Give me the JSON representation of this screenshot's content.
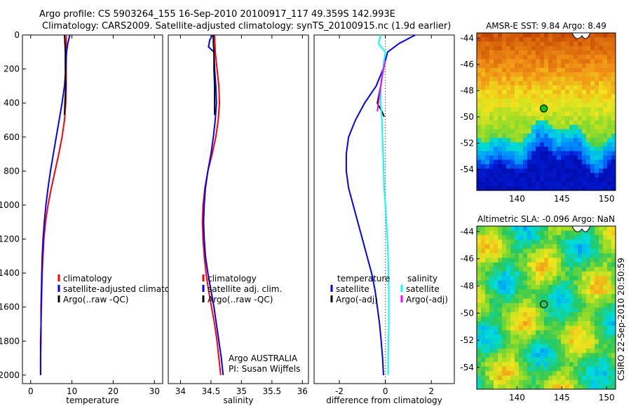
{
  "title_line1": "Argo profile: CS 5903264_155 16-Sep-2010 20100917_117 49.359S 142.993E",
  "title_line2": "Climatology: CARS2009. Satellite-adjusted climatology: synTS_20100915.nc (1.9d earlier)",
  "colors": {
    "climatology": "#ff0000",
    "satellite": "#0000ff",
    "argo": "#000000",
    "salinity_satellite": "#00ffff",
    "salinity_argo_adj": "#ff00ff"
  },
  "chart_data": [
    {
      "type": "line",
      "name": "temperature-panel",
      "xlabel": "temperature",
      "xlim": [
        -2,
        32
      ],
      "ylim": [
        0,
        2050
      ],
      "x_ticks": [
        0,
        10,
        20,
        30
      ],
      "y_ticks": [
        0,
        200,
        400,
        600,
        800,
        1000,
        1200,
        1400,
        1600,
        1800,
        2000
      ],
      "y_reversed": true,
      "legend": {
        "position": "lower-right",
        "entries": [
          "climatology",
          "satellite-adjusted climatology",
          "Argo(..raw -QC)"
        ]
      },
      "series": [
        {
          "name": "climatology",
          "color": "#ff0000",
          "depth": [
            0,
            100,
            200,
            300,
            400,
            500,
            600,
            700,
            800,
            900,
            1000,
            1100,
            1200,
            1300,
            1400,
            1500,
            1600,
            1700,
            1800,
            1900,
            2000
          ],
          "values": [
            8.6,
            8.6,
            8.6,
            8.6,
            8.5,
            8.2,
            7.6,
            6.8,
            5.9,
            5.0,
            4.2,
            3.6,
            3.2,
            3.0,
            2.8,
            2.7,
            2.6,
            2.5,
            2.5,
            2.4,
            2.4
          ]
        },
        {
          "name": "satellite-adjusted climatology",
          "color": "#0000ff",
          "depth": [
            0,
            50,
            100,
            200,
            300,
            400,
            500,
            600,
            700,
            800,
            900,
            1000,
            1100,
            1200,
            1300,
            1400,
            1500,
            1600,
            1700,
            1800,
            1900,
            2000
          ],
          "values": [
            9.5,
            9.0,
            8.7,
            8.5,
            8.2,
            7.6,
            6.9,
            6.2,
            5.5,
            4.8,
            4.2,
            3.7,
            3.3,
            3.0,
            2.8,
            2.7,
            2.6,
            2.5,
            2.5,
            2.4,
            2.4,
            2.4
          ]
        },
        {
          "name": "Argo(..raw -QC)",
          "color": "#000000",
          "depth": [
            0,
            50,
            100,
            200,
            300,
            400,
            470
          ],
          "values": [
            8.2,
            8.3,
            8.4,
            8.4,
            8.5,
            8.3,
            8.2
          ]
        }
      ]
    },
    {
      "type": "line",
      "name": "salinity-panel",
      "xlabel": "salinity",
      "xlim": [
        33.8,
        36.1
      ],
      "ylim": [
        0,
        2050
      ],
      "x_ticks": [
        34,
        34.5,
        35,
        35.5,
        36
      ],
      "y_reversed": true,
      "legend": {
        "position": "lower-right",
        "entries": [
          "climatology",
          "satellite adj. clim.",
          "Argo(..raw -QC)"
        ]
      },
      "annotation": [
        "Argo AUSTRALIA",
        "PI: Susan Wijffels"
      ],
      "series": [
        {
          "name": "climatology",
          "color": "#ff0000",
          "depth": [
            0,
            100,
            200,
            300,
            400,
            500,
            600,
            700,
            800,
            900,
            1000,
            1100,
            1200,
            1300,
            1400,
            1500,
            1600,
            1700,
            1800,
            1900,
            2000
          ],
          "values": [
            34.56,
            34.57,
            34.6,
            34.63,
            34.64,
            34.62,
            34.58,
            34.52,
            34.45,
            34.4,
            34.37,
            34.36,
            34.37,
            34.39,
            34.42,
            34.46,
            34.51,
            34.56,
            34.6,
            34.63,
            34.66
          ]
        },
        {
          "name": "satellite adj. clim.",
          "color": "#0000ff",
          "depth": [
            0,
            30,
            70,
            100,
            200,
            300,
            400,
            500,
            600,
            700,
            800,
            900,
            1000,
            1100,
            1200,
            1300,
            1400,
            1500,
            1600,
            1700,
            1800,
            1900,
            2000
          ],
          "values": [
            34.53,
            34.48,
            34.46,
            34.55,
            34.56,
            34.58,
            34.59,
            34.57,
            34.54,
            34.5,
            34.45,
            34.41,
            34.39,
            34.38,
            34.39,
            34.41,
            34.45,
            34.5,
            34.55,
            34.59,
            34.63,
            34.67,
            34.7
          ]
        },
        {
          "name": "Argo(..raw -QC)",
          "color": "#000000",
          "depth": [
            0,
            50,
            100,
            200,
            300,
            400,
            470
          ],
          "values": [
            34.54,
            34.54,
            34.55,
            34.55,
            34.56,
            34.56,
            34.56
          ]
        }
      ]
    },
    {
      "type": "line",
      "name": "difference-panel",
      "xlabel": "difference from climatology",
      "xlim": [
        -3.1,
        3.0
      ],
      "ylim": [
        0,
        2050
      ],
      "x_ticks": [
        -2,
        0,
        2
      ],
      "y_reversed": true,
      "legend": {
        "position": "lower-center",
        "columns": [
          [
            "temperature",
            "satellite",
            "Argo(-adj)"
          ],
          [
            "salinity",
            "satellite",
            "Argo(-adj)"
          ]
        ]
      },
      "series": [
        {
          "name": "temperature satellite",
          "color": "#0000ff",
          "depth": [
            0,
            50,
            100,
            200,
            300,
            400,
            500,
            600,
            700,
            800,
            900,
            1000,
            1100,
            1200,
            1300,
            1400,
            1500,
            1600,
            1700,
            1800,
            1900,
            2000
          ],
          "values": [
            1.3,
            0.6,
            0.1,
            -0.1,
            -0.4,
            -0.9,
            -1.3,
            -1.6,
            -1.7,
            -1.7,
            -1.6,
            -1.4,
            -1.2,
            -1.0,
            -0.8,
            -0.6,
            -0.45,
            -0.35,
            -0.25,
            -0.18,
            -0.12,
            -0.08
          ]
        },
        {
          "name": "temperature Argo(-adj)",
          "color": "#000000",
          "depth": [
            150,
            200,
            300,
            400,
            450,
            480
          ],
          "values": [
            -0.05,
            -0.1,
            -0.2,
            -0.35,
            -0.15,
            -0.05
          ]
        },
        {
          "name": "salinity satellite",
          "color": "#00ffff",
          "depth": [
            0,
            50,
            100,
            200,
            300,
            400,
            500,
            700,
            900,
            1100,
            1300,
            1500,
            1700,
            1900,
            2000
          ],
          "values": [
            -0.2,
            -0.3,
            0.0,
            -0.1,
            -0.2,
            -0.2,
            -0.15,
            -0.1,
            -0.05,
            0.05,
            0.12,
            0.15,
            0.15,
            0.12,
            0.12
          ]
        },
        {
          "name": "salinity Argo(-adj)",
          "color": "#ff00ff",
          "depth": [
            150,
            250,
            350,
            450
          ],
          "values": [
            0.0,
            -0.15,
            -0.25,
            -0.35
          ]
        }
      ]
    },
    {
      "type": "heatmap",
      "name": "sst-map",
      "title": "AMSR-E SST: 9.84 Argo: 8.49",
      "xlim": [
        135.5,
        151
      ],
      "ylim": [
        -55.6,
        -43.6
      ],
      "x_ticks": [
        140,
        145,
        150
      ],
      "y_ticks": [
        -44,
        -46,
        -48,
        -50,
        -52,
        -54
      ],
      "marker": {
        "lon": 142.993,
        "lat": -49.359
      }
    },
    {
      "type": "heatmap",
      "name": "sla-map",
      "title": "Altimetric SLA: -0.096 Argo: NaN",
      "xlim": [
        135.5,
        151
      ],
      "ylim": [
        -55.6,
        -43.6
      ],
      "x_ticks": [
        140,
        145,
        150
      ],
      "y_ticks": [
        -44,
        -46,
        -48,
        -50,
        -52,
        -54
      ],
      "marker": {
        "lon": 142.993,
        "lat": -49.359
      }
    }
  ],
  "side_label": "CSIRO 22-Sep-2010 20:50:59"
}
